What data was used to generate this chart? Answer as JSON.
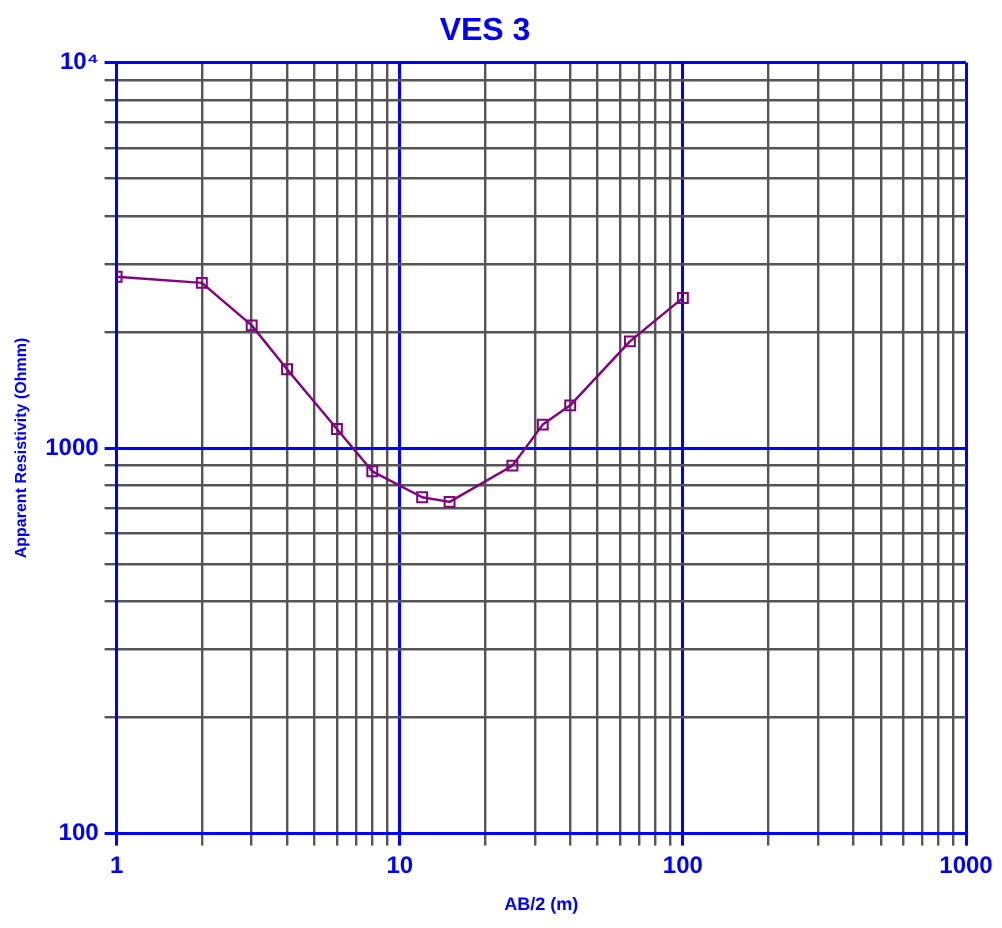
{
  "chart_data": {
    "type": "line",
    "title": "VES 3",
    "xlabel": "AB/2 (m)",
    "ylabel": "Apparent Resistivity (Ohmm)",
    "x": [
      1,
      2,
      3,
      4,
      6,
      8,
      12,
      15,
      25,
      32,
      40,
      65,
      100
    ],
    "series": [
      {
        "color": "#800080",
        "values": [
          2780,
          2680,
          2080,
          1600,
          1120,
          870,
          745,
          725,
          900,
          1150,
          1290,
          1890,
          2450
        ]
      }
    ],
    "log": "xy",
    "xlim": [
      1,
      1000
    ],
    "ylim": [
      100,
      10000
    ],
    "xticks": [
      1,
      {
        "value": 2,
        "label": null
      },
      {
        "value": 3,
        "label": null
      },
      {
        "value": 4,
        "label": null
      },
      {
        "value": 5,
        "label": null
      },
      {
        "value": 6,
        "label": null
      },
      {
        "value": 7,
        "label": null
      },
      {
        "value": 8,
        "label": null
      },
      {
        "value": 9,
        "label": null
      },
      10,
      {
        "value": 20,
        "label": null
      },
      {
        "value": 30,
        "label": null
      },
      {
        "value": 40,
        "label": null
      },
      {
        "value": 50,
        "label": null
      },
      {
        "value": 60,
        "label": null
      },
      {
        "value": 70,
        "label": null
      },
      {
        "value": 80,
        "label": null
      },
      {
        "value": 90,
        "label": null
      },
      100,
      {
        "value": 200,
        "label": null
      },
      {
        "value": 300,
        "label": null
      },
      {
        "value": 400,
        "label": null
      },
      {
        "value": 500,
        "label": null
      },
      {
        "value": 600,
        "label": null
      },
      {
        "value": 700,
        "label": null
      },
      {
        "value": 800,
        "label": null
      },
      {
        "value": 900,
        "label": null
      },
      1000
    ],
    "yticks": [
      100,
      {
        "value": 200,
        "label": null
      },
      {
        "value": 300,
        "label": null
      },
      {
        "value": 400,
        "label": null
      },
      {
        "value": 500,
        "label": null
      },
      {
        "value": 600,
        "label": null
      },
      {
        "value": 700,
        "label": null
      },
      {
        "value": 800,
        "label": null
      },
      {
        "value": 900,
        "label": null
      },
      1000,
      {
        "value": 2000,
        "label": null
      },
      {
        "value": 3000,
        "label": null
      },
      {
        "value": 4000,
        "label": null
      },
      {
        "value": 5000,
        "label": null
      },
      {
        "value": 6000,
        "label": null
      },
      {
        "value": 7000,
        "label": null
      },
      {
        "value": 8000,
        "label": null
      },
      {
        "value": 9000,
        "label": null
      },
      {
        "value": 10000,
        "label": "10⁴"
      }
    ],
    "grid": true,
    "marker": "square",
    "line_style": "solid",
    "legend": false
  }
}
